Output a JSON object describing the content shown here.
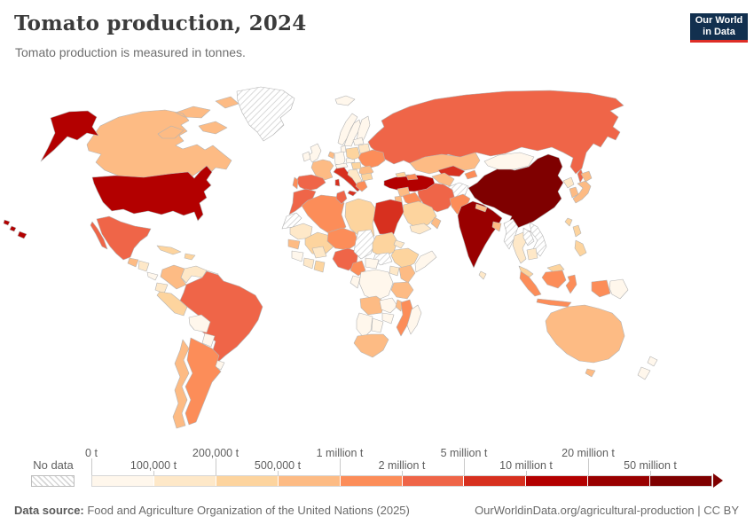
{
  "header": {
    "title": "Tomato production, 2024",
    "subtitle": "Tomato production is measured in tonnes.",
    "logo_line1": "Our World",
    "logo_line2": "in Data",
    "logo_bg": "#12304f",
    "logo_accent": "#de2d26"
  },
  "legend": {
    "no_data_label": "No data"
  },
  "footer": {
    "source_label": "Data source:",
    "source_text": " Food and Agriculture Organization of the United Nations (2025)",
    "credit": "OurWorldinData.org/agricultural-production | CC BY"
  },
  "chart_data": {
    "type": "choropleth",
    "title": "Tomato production, 2024",
    "unit": "tonnes",
    "legend_thresholds": [
      "0 t",
      "100,000 t",
      "200,000 t",
      "500,000 t",
      "1 million t",
      "2 million t",
      "5 million t",
      "10 million t",
      "20 million t",
      "50 million t"
    ],
    "palette": [
      "#FFF7EC",
      "#FEE8C8",
      "#FDD49E",
      "#FDBB84",
      "#FC8D59",
      "#EF6548",
      "#D7301F",
      "#B30000",
      "#990000",
      "#7F0000"
    ],
    "bins": [
      "0 t – 100,000 t",
      "100,000 t – 200,000 t",
      "200,000 t – 500,000 t",
      "500,000 t – 1 million t",
      "1 million t – 2 million t",
      "2 million t – 5 million t",
      "5 million t – 10 million t",
      "10 million t – 20 million t",
      "20 million t – 50 million t",
      "More than 50 million t"
    ],
    "no_data": {
      "label": "No data",
      "style": "hatched"
    },
    "countries": [
      {
        "id": "usa",
        "name": "United States",
        "level": 8
      },
      {
        "id": "canada",
        "name": "Canada",
        "level": 4
      },
      {
        "id": "greenland",
        "name": "Greenland",
        "level": 0
      },
      {
        "id": "mexico",
        "name": "Mexico",
        "level": 6
      },
      {
        "id": "guatemala",
        "name": "Guatemala",
        "level": 4
      },
      {
        "id": "honduras",
        "name": "Honduras/Nicaragua",
        "level": 2
      },
      {
        "id": "costarica",
        "name": "Costa Rica/Panama",
        "level": 1
      },
      {
        "id": "cuba",
        "name": "Cuba",
        "level": 3
      },
      {
        "id": "hispaniola",
        "name": "Dominican Rep./Haiti",
        "level": 3
      },
      {
        "id": "colombia",
        "name": "Colombia",
        "level": 4
      },
      {
        "id": "venezuela",
        "name": "Venezuela",
        "level": 2
      },
      {
        "id": "guyanas",
        "name": "Guyana/Suriname",
        "level": 1
      },
      {
        "id": "ecuador",
        "name": "Ecuador",
        "level": 2
      },
      {
        "id": "peru",
        "name": "Peru",
        "level": 3
      },
      {
        "id": "brazil",
        "name": "Brazil",
        "level": 6
      },
      {
        "id": "bolivia",
        "name": "Bolivia",
        "level": 1
      },
      {
        "id": "paraguay",
        "name": "Paraguay",
        "level": 1
      },
      {
        "id": "uruguay",
        "name": "Uruguay",
        "level": 1
      },
      {
        "id": "argentina",
        "name": "Argentina",
        "level": 5
      },
      {
        "id": "chile",
        "name": "Chile",
        "level": 4
      },
      {
        "id": "iceland",
        "name": "Iceland",
        "level": 1
      },
      {
        "id": "uk",
        "name": "United Kingdom",
        "level": 1
      },
      {
        "id": "ireland",
        "name": "Ireland",
        "level": 1
      },
      {
        "id": "norway",
        "name": "Norway",
        "level": 1
      },
      {
        "id": "sweden",
        "name": "Sweden",
        "level": 1
      },
      {
        "id": "finland",
        "name": "Finland",
        "level": 1
      },
      {
        "id": "denmark",
        "name": "Denmark",
        "level": 1
      },
      {
        "id": "germany",
        "name": "Germany",
        "level": 1
      },
      {
        "id": "benelux",
        "name": "Netherlands/Belgium",
        "level": 4
      },
      {
        "id": "france",
        "name": "France",
        "level": 4
      },
      {
        "id": "spain",
        "name": "Spain",
        "level": 6
      },
      {
        "id": "portugal",
        "name": "Portugal",
        "level": 5
      },
      {
        "id": "italy",
        "name": "Italy",
        "level": 7
      },
      {
        "id": "austria",
        "name": "Switzerland/Austria",
        "level": 1
      },
      {
        "id": "czechia",
        "name": "Czechia",
        "level": 1
      },
      {
        "id": "poland",
        "name": "Poland",
        "level": 3
      },
      {
        "id": "belarus",
        "name": "Belarus",
        "level": 2
      },
      {
        "id": "baltics",
        "name": "Baltic states",
        "level": 1
      },
      {
        "id": "ukraine",
        "name": "Ukraine",
        "level": 5
      },
      {
        "id": "romania",
        "name": "Romania",
        "level": 4
      },
      {
        "id": "hungary",
        "name": "Hungary",
        "level": 3
      },
      {
        "id": "balkans",
        "name": "Western Balkans",
        "level": 2
      },
      {
        "id": "bulgaria",
        "name": "Bulgaria",
        "level": 3
      },
      {
        "id": "greece",
        "name": "Greece",
        "level": 5
      },
      {
        "id": "russia",
        "name": "Russia",
        "level": 6
      },
      {
        "id": "turkey",
        "name": "Turkey",
        "level": 8
      },
      {
        "id": "georgia",
        "name": "Georgia",
        "level": 3
      },
      {
        "id": "azerbaijan",
        "name": "Azerbaijan",
        "level": 5
      },
      {
        "id": "syria",
        "name": "Syria",
        "level": 4
      },
      {
        "id": "iraq",
        "name": "Iraq",
        "level": 5
      },
      {
        "id": "israeljordan",
        "name": "Israel/Jordan",
        "level": 4
      },
      {
        "id": "saudiarabia",
        "name": "Saudi Arabia",
        "level": 3
      },
      {
        "id": "yemen",
        "name": "Yemen",
        "level": 2
      },
      {
        "id": "oman",
        "name": "Oman",
        "level": 4
      },
      {
        "id": "iran",
        "name": "Iran",
        "level": 6
      },
      {
        "id": "turkmenistan",
        "name": "Turkmenistan",
        "level": 4
      },
      {
        "id": "uzbekistan",
        "name": "Uzbekistan",
        "level": 7
      },
      {
        "id": "kazakhstan",
        "name": "Kazakhstan",
        "level": 4
      },
      {
        "id": "kyrgyzstan",
        "name": "Kyrgyzstan/Tajikistan",
        "level": 5
      },
      {
        "id": "afghanistan",
        "name": "Afghanistan",
        "level": 0
      },
      {
        "id": "pakistan",
        "name": "Pakistan",
        "level": 5
      },
      {
        "id": "india",
        "name": "India",
        "level": 9
      },
      {
        "id": "nepal",
        "name": "Nepal",
        "level": 4
      },
      {
        "id": "bangladesh",
        "name": "Bangladesh",
        "level": 4
      },
      {
        "id": "srilanka",
        "name": "Sri Lanka",
        "level": 2
      },
      {
        "id": "china",
        "name": "China",
        "level": 10
      },
      {
        "id": "mongolia",
        "name": "Mongolia",
        "level": 1
      },
      {
        "id": "northkorea",
        "name": "North Korea",
        "level": 2
      },
      {
        "id": "southkorea",
        "name": "South Korea",
        "level": 4
      },
      {
        "id": "japan",
        "name": "Japan",
        "level": 4
      },
      {
        "id": "taiwan",
        "name": "Taiwan",
        "level": 3
      },
      {
        "id": "myanmar",
        "name": "Myanmar",
        "level": 0
      },
      {
        "id": "thailand",
        "name": "Thailand",
        "level": 2
      },
      {
        "id": "laos",
        "name": "Laos",
        "level": 0
      },
      {
        "id": "vietnam",
        "name": "Vietnam",
        "level": 0
      },
      {
        "id": "cambodia",
        "name": "Cambodia",
        "level": 2
      },
      {
        "id": "malaysia",
        "name": "Malaysia",
        "level": 3
      },
      {
        "id": "indonesia",
        "name": "Indonesia",
        "level": 5
      },
      {
        "id": "papuanewguinea",
        "name": "Papua New Guinea",
        "level": 1
      },
      {
        "id": "philippines",
        "name": "Philippines",
        "level": 3
      },
      {
        "id": "morocco",
        "name": "Morocco",
        "level": 6
      },
      {
        "id": "westernsahara",
        "name": "Western Sahara",
        "level": 0
      },
      {
        "id": "algeria",
        "name": "Algeria",
        "level": 5
      },
      {
        "id": "tunisia",
        "name": "Tunisia",
        "level": 6
      },
      {
        "id": "libya",
        "name": "Libya",
        "level": 3
      },
      {
        "id": "egypt",
        "name": "Egypt",
        "level": 7
      },
      {
        "id": "mauritania",
        "name": "Mauritania",
        "level": 2
      },
      {
        "id": "mali",
        "name": "Mali",
        "level": 3
      },
      {
        "id": "senegal",
        "name": "Senegal",
        "level": 4
      },
      {
        "id": "guinea",
        "name": "Guinea",
        "level": 1
      },
      {
        "id": "ivorycoast",
        "name": "Côte d'Ivoire",
        "level": 2
      },
      {
        "id": "ghana",
        "name": "Ghana/Togo/Benin",
        "level": 3
      },
      {
        "id": "burkinafaso",
        "name": "Burkina Faso",
        "level": 2
      },
      {
        "id": "niger",
        "name": "Niger",
        "level": 5
      },
      {
        "id": "nigeria",
        "name": "Nigeria",
        "level": 6
      },
      {
        "id": "chad",
        "name": "Chad",
        "level": 0
      },
      {
        "id": "sudan",
        "name": "Sudan",
        "level": 3
      },
      {
        "id": "southsudan",
        "name": "South Sudan",
        "level": 0
      },
      {
        "id": "eritrea",
        "name": "Eritrea",
        "level": 2
      },
      {
        "id": "ethiopia",
        "name": "Ethiopia",
        "level": 3
      },
      {
        "id": "somalia",
        "name": "Somalia",
        "level": 1
      },
      {
        "id": "cameroon",
        "name": "Cameroon",
        "level": 5
      },
      {
        "id": "car",
        "name": "Central African Republic",
        "level": 1
      },
      {
        "id": "drc",
        "name": "Democratic Republic of Congo",
        "level": 1
      },
      {
        "id": "congo",
        "name": "Congo/Gabon",
        "level": 1
      },
      {
        "id": "uganda",
        "name": "Uganda",
        "level": 2
      },
      {
        "id": "kenya",
        "name": "Kenya",
        "level": 4
      },
      {
        "id": "tanzania",
        "name": "Tanzania",
        "level": 4
      },
      {
        "id": "angola",
        "name": "Angola",
        "level": 4
      },
      {
        "id": "zambia",
        "name": "Zambia",
        "level": 1
      },
      {
        "id": "malawi",
        "name": "Malawi",
        "level": 4
      },
      {
        "id": "mozambique",
        "name": "Mozambique",
        "level": 5
      },
      {
        "id": "zimbabwe",
        "name": "Zimbabwe",
        "level": 1
      },
      {
        "id": "namibia",
        "name": "Namibia",
        "level": 1
      },
      {
        "id": "botswana",
        "name": "Botswana",
        "level": 1
      },
      {
        "id": "southafrica",
        "name": "South Africa",
        "level": 4
      },
      {
        "id": "madagascar",
        "name": "Madagascar",
        "level": 1
      },
      {
        "id": "australia",
        "name": "Australia",
        "level": 4
      },
      {
        "id": "newzealand",
        "name": "New Zealand",
        "level": 1
      }
    ]
  }
}
